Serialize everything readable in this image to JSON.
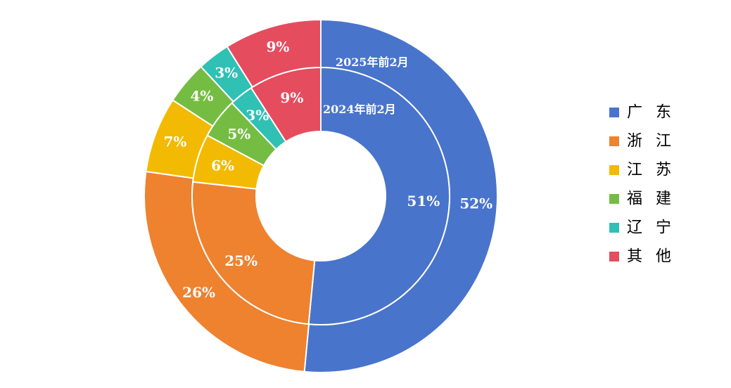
{
  "chart_data": {
    "type": "pie",
    "categories": [
      "广东",
      "浙江",
      "江苏",
      "福建",
      "辽宁",
      "其他"
    ],
    "legend_labels": [
      "广 东",
      "浙 江",
      "江 苏",
      "福 建",
      "辽 宁",
      "其 他"
    ],
    "colors": [
      "#4874CB",
      "#EE822F",
      "#F2BA02",
      "#75BD42",
      "#30C0B4",
      "#E54C5E"
    ],
    "legend_position": "right",
    "series": [
      {
        "name": "2025年前2月",
        "ring": "outer",
        "values": [
          52,
          26,
          7,
          4,
          3,
          9
        ],
        "labels": [
          "52%",
          "26%",
          "7%",
          "4%",
          "3%",
          "9%"
        ]
      },
      {
        "name": "2024年前2月",
        "ring": "inner",
        "values": [
          51,
          25,
          6,
          5,
          3,
          9
        ],
        "labels": [
          "51%",
          "25%",
          "6%",
          "5%",
          "3%",
          "9%"
        ]
      }
    ]
  }
}
